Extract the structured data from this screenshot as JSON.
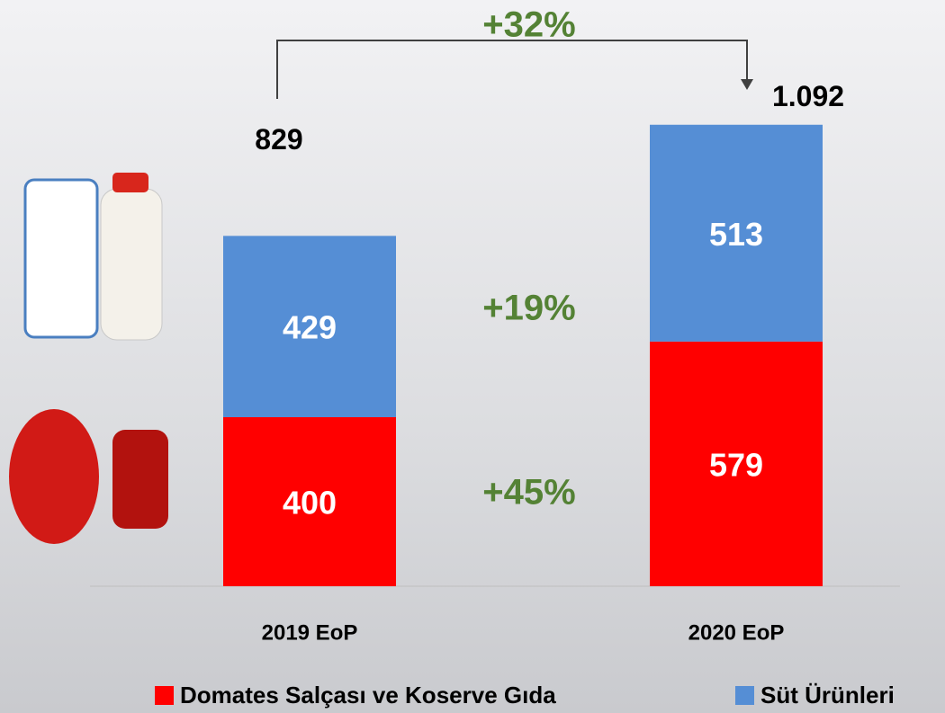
{
  "chart_data": {
    "type": "stacked-bar",
    "categories": [
      "2019 EoP",
      "2020 EoP"
    ],
    "series": [
      {
        "name": "Domates Salçası ve Koserve Gıda",
        "color": "#ff0000",
        "values": [
          400,
          579
        ]
      },
      {
        "name": "Süt Ürünleri",
        "color": "#558ed5",
        "values": [
          429,
          513
        ]
      }
    ],
    "totals": {
      "values": [
        829,
        1092
      ],
      "value_labels": [
        "829",
        "1.092"
      ]
    },
    "annotations": {
      "total_growth": "+32%",
      "dairy_growth": "+19%",
      "tomato_growth": "+45%"
    },
    "ylim": [
      0,
      1100
    ]
  }
}
